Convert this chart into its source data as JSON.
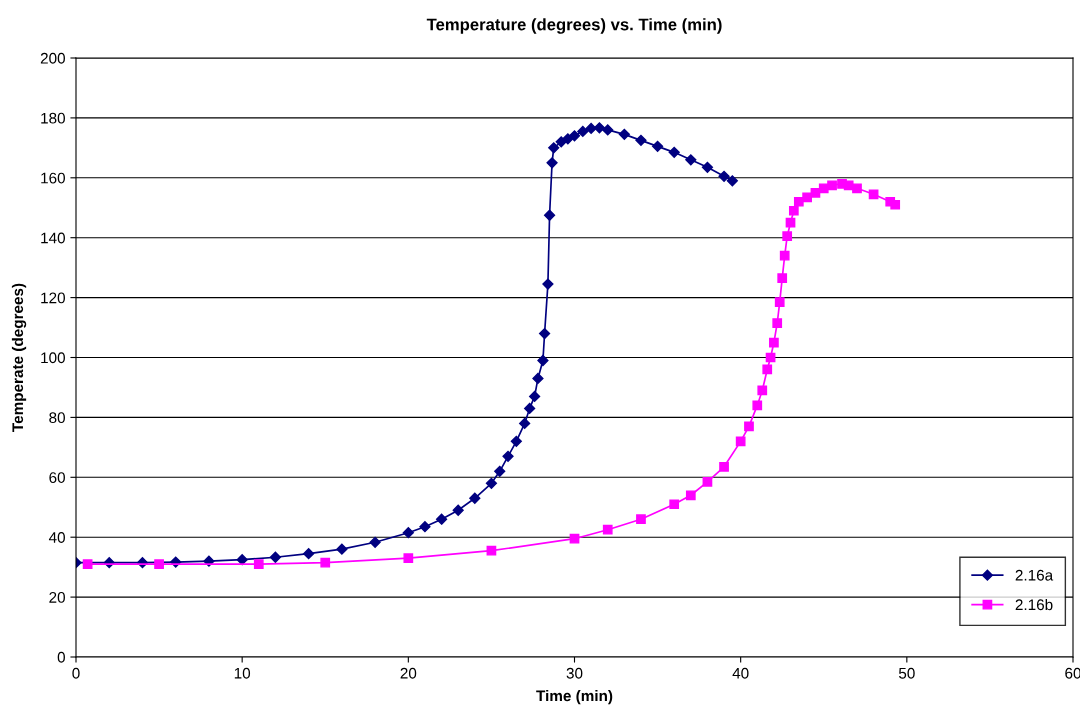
{
  "chart_data": {
    "type": "line",
    "title": "Temperature (degrees) vs. Time (min)",
    "xlabel": "Time (min)",
    "ylabel": "Temperate (degrees)",
    "xlim": [
      0,
      60
    ],
    "xticks": [
      0,
      10,
      20,
      30,
      40,
      50,
      60
    ],
    "ylim": [
      0,
      200
    ],
    "yticks": [
      0,
      20,
      40,
      60,
      80,
      100,
      120,
      140,
      160,
      180,
      200
    ],
    "grid": "y",
    "legend": "bottom right",
    "series": [
      {
        "name": "2.16a",
        "color": "#000080",
        "marker": "diamond",
        "x": [
          0,
          2,
          4,
          6,
          8,
          10,
          12,
          14,
          16,
          18,
          20,
          21,
          22,
          23,
          24,
          25,
          25.5,
          26,
          26.5,
          27,
          27.3,
          27.6,
          27.8,
          28.1,
          28.2,
          28.4,
          28.5,
          28.65,
          28.75,
          29.2,
          29.6,
          30,
          30.5,
          31,
          31.5,
          32,
          33,
          34,
          35,
          36,
          37,
          38,
          39,
          39.5
        ],
        "values": [
          31.5,
          31.5,
          31.5,
          31.7,
          32,
          32.5,
          33.3,
          34.5,
          36,
          38.3,
          41.5,
          43.5,
          46,
          49,
          53,
          58,
          62,
          67,
          72,
          78,
          83,
          87,
          93,
          99,
          108,
          124.5,
          147.5,
          165,
          170,
          172,
          173,
          174,
          175.5,
          176.5,
          176.7,
          176,
          174.5,
          172.5,
          170.5,
          168.5,
          166,
          163.5,
          160.5,
          159
        ]
      },
      {
        "name": "2.16b",
        "color": "#ff00ff",
        "marker": "square",
        "x": [
          0.7,
          5,
          11,
          15,
          20,
          25,
          30,
          32,
          34,
          36,
          37,
          38,
          39,
          40,
          40.5,
          41,
          41.3,
          41.6,
          41.8,
          42.0,
          42.2,
          42.35,
          42.5,
          42.65,
          42.8,
          43,
          43.2,
          43.5,
          44,
          44.5,
          45,
          45.5,
          46.1,
          46.5,
          47,
          48,
          49,
          49.3
        ],
        "values": [
          31,
          31,
          31,
          31.5,
          33,
          35.5,
          39.5,
          42.5,
          46,
          51,
          54,
          58.5,
          63.5,
          72,
          77,
          84,
          89,
          96,
          100,
          105,
          111.5,
          118.5,
          126.5,
          134,
          140.5,
          145,
          149,
          152,
          153.5,
          155,
          156.5,
          157.5,
          158,
          157.5,
          156.5,
          154.5,
          152,
          151
        ]
      }
    ]
  }
}
